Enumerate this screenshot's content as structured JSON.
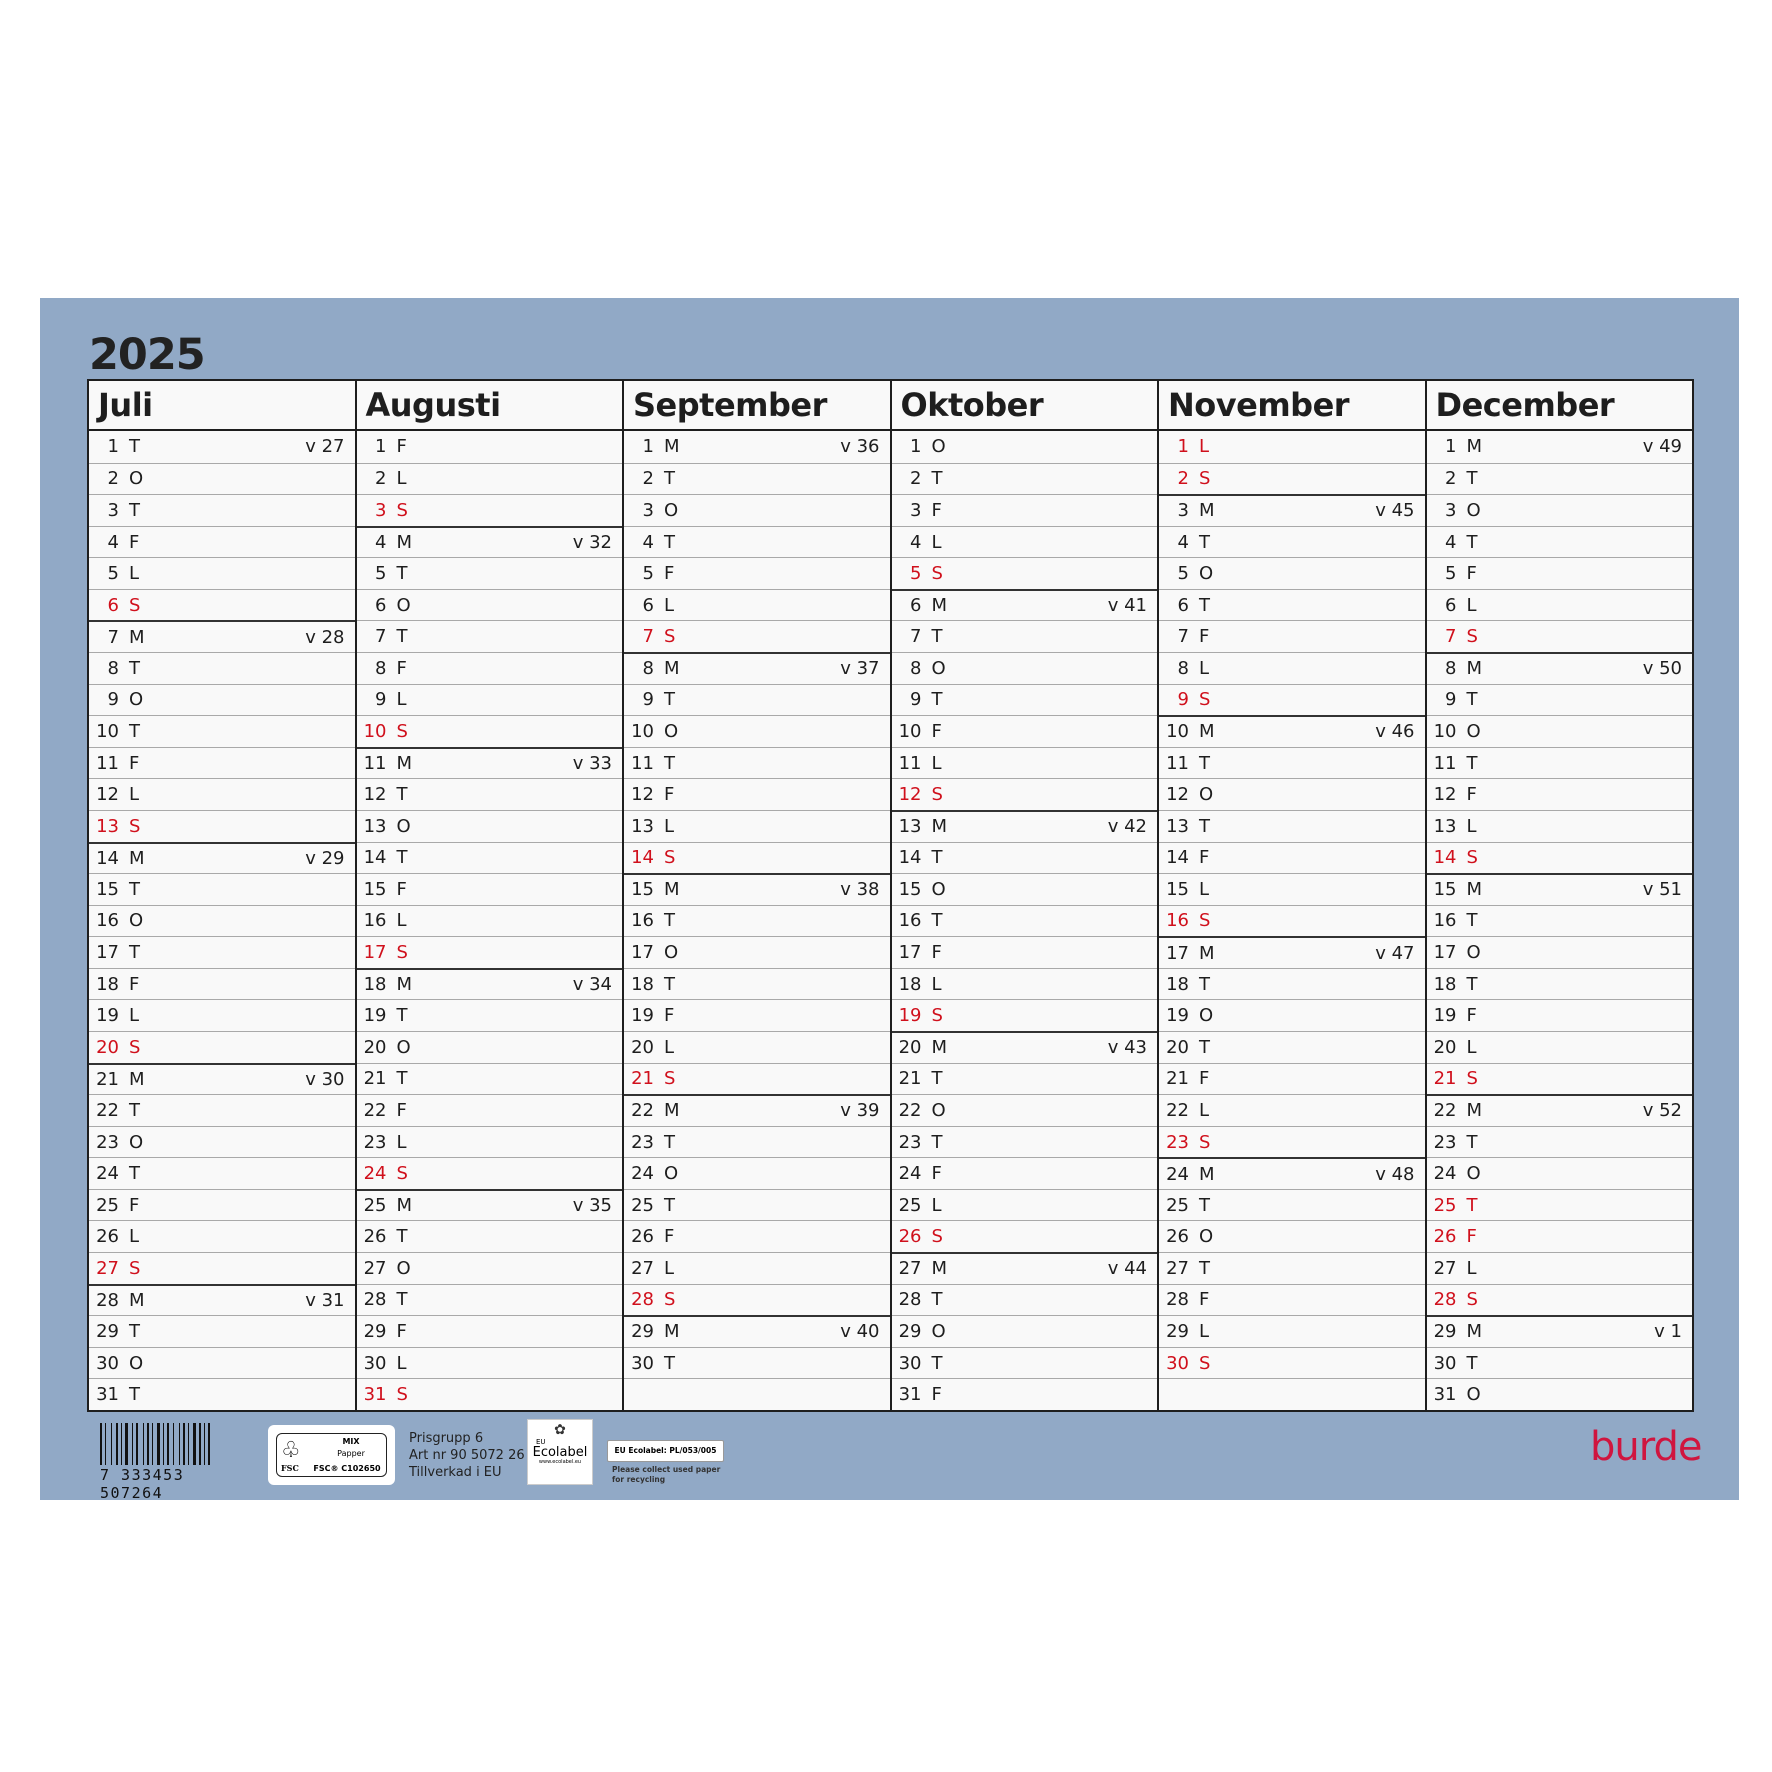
{
  "year": "2025",
  "colors": {
    "panel": "#91a9c6",
    "red": "#d0101c",
    "logo": "#d0153f"
  },
  "months": [
    {
      "name": "Juli",
      "days": [
        [
          "1",
          "T",
          "v 27",
          0
        ],
        [
          "2",
          "O",
          "",
          0
        ],
        [
          "3",
          "T",
          "",
          0
        ],
        [
          "4",
          "F",
          "",
          0
        ],
        [
          "5",
          "L",
          "",
          0
        ],
        [
          "6",
          "S",
          "",
          1
        ],
        [
          "7",
          "M",
          "v 28",
          0
        ],
        [
          "8",
          "T",
          "",
          0
        ],
        [
          "9",
          "O",
          "",
          0
        ],
        [
          "10",
          "T",
          "",
          0
        ],
        [
          "11",
          "F",
          "",
          0
        ],
        [
          "12",
          "L",
          "",
          0
        ],
        [
          "13",
          "S",
          "",
          1
        ],
        [
          "14",
          "M",
          "v 29",
          0
        ],
        [
          "15",
          "T",
          "",
          0
        ],
        [
          "16",
          "O",
          "",
          0
        ],
        [
          "17",
          "T",
          "",
          0
        ],
        [
          "18",
          "F",
          "",
          0
        ],
        [
          "19",
          "L",
          "",
          0
        ],
        [
          "20",
          "S",
          "",
          1
        ],
        [
          "21",
          "M",
          "v 30",
          0
        ],
        [
          "22",
          "T",
          "",
          0
        ],
        [
          "23",
          "O",
          "",
          0
        ],
        [
          "24",
          "T",
          "",
          0
        ],
        [
          "25",
          "F",
          "",
          0
        ],
        [
          "26",
          "L",
          "",
          0
        ],
        [
          "27",
          "S",
          "",
          1
        ],
        [
          "28",
          "M",
          "v 31",
          0
        ],
        [
          "29",
          "T",
          "",
          0
        ],
        [
          "30",
          "O",
          "",
          0
        ],
        [
          "31",
          "T",
          "",
          0
        ]
      ]
    },
    {
      "name": "Augusti",
      "days": [
        [
          "1",
          "F",
          "",
          0
        ],
        [
          "2",
          "L",
          "",
          0
        ],
        [
          "3",
          "S",
          "",
          1
        ],
        [
          "4",
          "M",
          "v 32",
          0
        ],
        [
          "5",
          "T",
          "",
          0
        ],
        [
          "6",
          "O",
          "",
          0
        ],
        [
          "7",
          "T",
          "",
          0
        ],
        [
          "8",
          "F",
          "",
          0
        ],
        [
          "9",
          "L",
          "",
          0
        ],
        [
          "10",
          "S",
          "",
          1
        ],
        [
          "11",
          "M",
          "v 33",
          0
        ],
        [
          "12",
          "T",
          "",
          0
        ],
        [
          "13",
          "O",
          "",
          0
        ],
        [
          "14",
          "T",
          "",
          0
        ],
        [
          "15",
          "F",
          "",
          0
        ],
        [
          "16",
          "L",
          "",
          0
        ],
        [
          "17",
          "S",
          "",
          1
        ],
        [
          "18",
          "M",
          "v 34",
          0
        ],
        [
          "19",
          "T",
          "",
          0
        ],
        [
          "20",
          "O",
          "",
          0
        ],
        [
          "21",
          "T",
          "",
          0
        ],
        [
          "22",
          "F",
          "",
          0
        ],
        [
          "23",
          "L",
          "",
          0
        ],
        [
          "24",
          "S",
          "",
          1
        ],
        [
          "25",
          "M",
          "v 35",
          0
        ],
        [
          "26",
          "T",
          "",
          0
        ],
        [
          "27",
          "O",
          "",
          0
        ],
        [
          "28",
          "T",
          "",
          0
        ],
        [
          "29",
          "F",
          "",
          0
        ],
        [
          "30",
          "L",
          "",
          0
        ],
        [
          "31",
          "S",
          "",
          1
        ]
      ]
    },
    {
      "name": "September",
      "days": [
        [
          "1",
          "M",
          "v 36",
          0
        ],
        [
          "2",
          "T",
          "",
          0
        ],
        [
          "3",
          "O",
          "",
          0
        ],
        [
          "4",
          "T",
          "",
          0
        ],
        [
          "5",
          "F",
          "",
          0
        ],
        [
          "6",
          "L",
          "",
          0
        ],
        [
          "7",
          "S",
          "",
          1
        ],
        [
          "8",
          "M",
          "v 37",
          0
        ],
        [
          "9",
          "T",
          "",
          0
        ],
        [
          "10",
          "O",
          "",
          0
        ],
        [
          "11",
          "T",
          "",
          0
        ],
        [
          "12",
          "F",
          "",
          0
        ],
        [
          "13",
          "L",
          "",
          0
        ],
        [
          "14",
          "S",
          "",
          1
        ],
        [
          "15",
          "M",
          "v 38",
          0
        ],
        [
          "16",
          "T",
          "",
          0
        ],
        [
          "17",
          "O",
          "",
          0
        ],
        [
          "18",
          "T",
          "",
          0
        ],
        [
          "19",
          "F",
          "",
          0
        ],
        [
          "20",
          "L",
          "",
          0
        ],
        [
          "21",
          "S",
          "",
          1
        ],
        [
          "22",
          "M",
          "v 39",
          0
        ],
        [
          "23",
          "T",
          "",
          0
        ],
        [
          "24",
          "O",
          "",
          0
        ],
        [
          "25",
          "T",
          "",
          0
        ],
        [
          "26",
          "F",
          "",
          0
        ],
        [
          "27",
          "L",
          "",
          0
        ],
        [
          "28",
          "S",
          "",
          1
        ],
        [
          "29",
          "M",
          "v 40",
          0
        ],
        [
          "30",
          "T",
          "",
          0
        ]
      ]
    },
    {
      "name": "Oktober",
      "days": [
        [
          "1",
          "O",
          "",
          0
        ],
        [
          "2",
          "T",
          "",
          0
        ],
        [
          "3",
          "F",
          "",
          0
        ],
        [
          "4",
          "L",
          "",
          0
        ],
        [
          "5",
          "S",
          "",
          1
        ],
        [
          "6",
          "M",
          "v 41",
          0
        ],
        [
          "7",
          "T",
          "",
          0
        ],
        [
          "8",
          "O",
          "",
          0
        ],
        [
          "9",
          "T",
          "",
          0
        ],
        [
          "10",
          "F",
          "",
          0
        ],
        [
          "11",
          "L",
          "",
          0
        ],
        [
          "12",
          "S",
          "",
          1
        ],
        [
          "13",
          "M",
          "v 42",
          0
        ],
        [
          "14",
          "T",
          "",
          0
        ],
        [
          "15",
          "O",
          "",
          0
        ],
        [
          "16",
          "T",
          "",
          0
        ],
        [
          "17",
          "F",
          "",
          0
        ],
        [
          "18",
          "L",
          "",
          0
        ],
        [
          "19",
          "S",
          "",
          1
        ],
        [
          "20",
          "M",
          "v 43",
          0
        ],
        [
          "21",
          "T",
          "",
          0
        ],
        [
          "22",
          "O",
          "",
          0
        ],
        [
          "23",
          "T",
          "",
          0
        ],
        [
          "24",
          "F",
          "",
          0
        ],
        [
          "25",
          "L",
          "",
          0
        ],
        [
          "26",
          "S",
          "",
          1
        ],
        [
          "27",
          "M",
          "v 44",
          0
        ],
        [
          "28",
          "T",
          "",
          0
        ],
        [
          "29",
          "O",
          "",
          0
        ],
        [
          "30",
          "T",
          "",
          0
        ],
        [
          "31",
          "F",
          "",
          0
        ]
      ]
    },
    {
      "name": "November",
      "days": [
        [
          "1",
          "L",
          "",
          1
        ],
        [
          "2",
          "S",
          "",
          1
        ],
        [
          "3",
          "M",
          "v 45",
          0
        ],
        [
          "4",
          "T",
          "",
          0
        ],
        [
          "5",
          "O",
          "",
          0
        ],
        [
          "6",
          "T",
          "",
          0
        ],
        [
          "7",
          "F",
          "",
          0
        ],
        [
          "8",
          "L",
          "",
          0
        ],
        [
          "9",
          "S",
          "",
          1
        ],
        [
          "10",
          "M",
          "v 46",
          0
        ],
        [
          "11",
          "T",
          "",
          0
        ],
        [
          "12",
          "O",
          "",
          0
        ],
        [
          "13",
          "T",
          "",
          0
        ],
        [
          "14",
          "F",
          "",
          0
        ],
        [
          "15",
          "L",
          "",
          0
        ],
        [
          "16",
          "S",
          "",
          1
        ],
        [
          "17",
          "M",
          "v 47",
          0
        ],
        [
          "18",
          "T",
          "",
          0
        ],
        [
          "19",
          "O",
          "",
          0
        ],
        [
          "20",
          "T",
          "",
          0
        ],
        [
          "21",
          "F",
          "",
          0
        ],
        [
          "22",
          "L",
          "",
          0
        ],
        [
          "23",
          "S",
          "",
          1
        ],
        [
          "24",
          "M",
          "v 48",
          0
        ],
        [
          "25",
          "T",
          "",
          0
        ],
        [
          "26",
          "O",
          "",
          0
        ],
        [
          "27",
          "T",
          "",
          0
        ],
        [
          "28",
          "F",
          "",
          0
        ],
        [
          "29",
          "L",
          "",
          0
        ],
        [
          "30",
          "S",
          "",
          1
        ]
      ]
    },
    {
      "name": "December",
      "days": [
        [
          "1",
          "M",
          "v 49",
          0
        ],
        [
          "2",
          "T",
          "",
          0
        ],
        [
          "3",
          "O",
          "",
          0
        ],
        [
          "4",
          "T",
          "",
          0
        ],
        [
          "5",
          "F",
          "",
          0
        ],
        [
          "6",
          "L",
          "",
          0
        ],
        [
          "7",
          "S",
          "",
          1
        ],
        [
          "8",
          "M",
          "v 50",
          0
        ],
        [
          "9",
          "T",
          "",
          0
        ],
        [
          "10",
          "O",
          "",
          0
        ],
        [
          "11",
          "T",
          "",
          0
        ],
        [
          "12",
          "F",
          "",
          0
        ],
        [
          "13",
          "L",
          "",
          0
        ],
        [
          "14",
          "S",
          "",
          1
        ],
        [
          "15",
          "M",
          "v 51",
          0
        ],
        [
          "16",
          "T",
          "",
          0
        ],
        [
          "17",
          "O",
          "",
          0
        ],
        [
          "18",
          "T",
          "",
          0
        ],
        [
          "19",
          "F",
          "",
          0
        ],
        [
          "20",
          "L",
          "",
          0
        ],
        [
          "21",
          "S",
          "",
          1
        ],
        [
          "22",
          "M",
          "v 52",
          0
        ],
        [
          "23",
          "T",
          "",
          0
        ],
        [
          "24",
          "O",
          "",
          0
        ],
        [
          "25",
          "T",
          "",
          1
        ],
        [
          "26",
          "F",
          "",
          1
        ],
        [
          "27",
          "L",
          "",
          0
        ],
        [
          "28",
          "S",
          "",
          1
        ],
        [
          "29",
          "M",
          "v 1",
          0
        ],
        [
          "30",
          "T",
          "",
          0
        ],
        [
          "31",
          "O",
          "",
          0
        ]
      ]
    }
  ],
  "footer": {
    "barcode": "7 333453 507264",
    "fsc": {
      "line1": "MIX",
      "line2": "Papper",
      "code": "FSC® C102650",
      "brand": "FSC"
    },
    "info": [
      "Prisgrupp 6",
      "Art nr 90 5072 26",
      "Tillverkad i EU"
    ],
    "ecolabel": {
      "eu": "EU",
      "name": "Ecolabel",
      "url": "www.ecolabel.eu"
    },
    "ecolabel_code": "EU Ecolabel: PL/053/005",
    "recycling": "Please collect used paper for recycling",
    "logo": "burde"
  }
}
